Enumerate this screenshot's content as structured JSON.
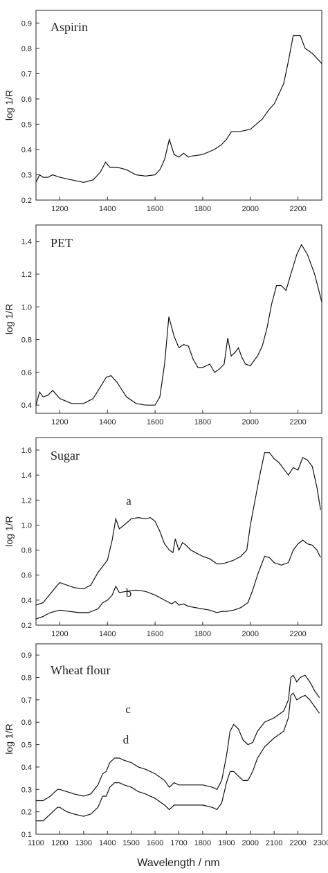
{
  "figure": {
    "xlabel": "Wavelength / nm"
  },
  "chart_data": [
    {
      "type": "line",
      "title": "Aspirin",
      "ylabel": "log 1/R",
      "xlim": [
        1100,
        2300
      ],
      "ylim": [
        0.2,
        0.95
      ],
      "yticks": [
        "0.2",
        "0.3",
        "0.4",
        "0.5",
        "0.6",
        "0.7",
        "0.8",
        "0.9"
      ],
      "xticks": [
        "1200",
        "1400",
        "1600",
        "1800",
        "2000",
        "2200"
      ],
      "series": [
        {
          "x": [
            1100,
            1115,
            1130,
            1150,
            1170,
            1200,
            1250,
            1300,
            1340,
            1370,
            1392,
            1410,
            1440,
            1480,
            1520,
            1560,
            1600,
            1620,
            1640,
            1660,
            1680,
            1700,
            1720,
            1740,
            1760,
            1800,
            1850,
            1880,
            1900,
            1920,
            1950,
            2000,
            2050,
            2080,
            2100,
            2120,
            2140,
            2160,
            2180,
            2195,
            2210,
            2230,
            2260,
            2300
          ],
          "y": [
            0.27,
            0.3,
            0.29,
            0.29,
            0.3,
            0.29,
            0.28,
            0.27,
            0.28,
            0.31,
            0.35,
            0.33,
            0.33,
            0.32,
            0.3,
            0.295,
            0.3,
            0.32,
            0.36,
            0.44,
            0.38,
            0.37,
            0.385,
            0.37,
            0.375,
            0.38,
            0.4,
            0.42,
            0.44,
            0.47,
            0.47,
            0.48,
            0.52,
            0.56,
            0.58,
            0.62,
            0.66,
            0.75,
            0.85,
            0.85,
            0.85,
            0.8,
            0.78,
            0.74
          ]
        }
      ]
    },
    {
      "type": "line",
      "title": "PET",
      "ylabel": "log 1/R",
      "xlim": [
        1100,
        2300
      ],
      "ylim": [
        0.35,
        1.5
      ],
      "yticks": [
        "0.4",
        "0.6",
        "0.8",
        "1.0",
        "1.2",
        "1.4"
      ],
      "xticks": [
        "1200",
        "1400",
        "1600",
        "1800",
        "2000",
        "2200"
      ],
      "series": [
        {
          "x": [
            1100,
            1115,
            1130,
            1150,
            1170,
            1200,
            1250,
            1300,
            1340,
            1370,
            1395,
            1415,
            1440,
            1480,
            1520,
            1560,
            1600,
            1620,
            1640,
            1658,
            1680,
            1700,
            1720,
            1740,
            1760,
            1780,
            1800,
            1830,
            1850,
            1870,
            1890,
            1905,
            1920,
            1935,
            1950,
            1965,
            1980,
            2000,
            2030,
            2050,
            2070,
            2090,
            2110,
            2130,
            2150,
            2170,
            2195,
            2215,
            2240,
            2270,
            2300
          ],
          "y": [
            0.4,
            0.48,
            0.45,
            0.46,
            0.49,
            0.44,
            0.41,
            0.41,
            0.44,
            0.51,
            0.57,
            0.58,
            0.54,
            0.45,
            0.41,
            0.4,
            0.4,
            0.45,
            0.65,
            0.94,
            0.82,
            0.75,
            0.77,
            0.76,
            0.68,
            0.63,
            0.63,
            0.65,
            0.6,
            0.62,
            0.65,
            0.81,
            0.7,
            0.72,
            0.75,
            0.69,
            0.65,
            0.64,
            0.7,
            0.76,
            0.87,
            1.02,
            1.13,
            1.13,
            1.1,
            1.2,
            1.32,
            1.38,
            1.32,
            1.2,
            1.03
          ]
        }
      ]
    },
    {
      "type": "line",
      "title": "Sugar",
      "ylabel": "log 1/R",
      "xlim": [
        1100,
        2300
      ],
      "ylim": [
        0.2,
        1.7
      ],
      "yticks": [
        "0.2",
        "0.4",
        "0.6",
        "0.8",
        "1.0",
        "1.2",
        "1.4",
        "1.6"
      ],
      "xticks": [
        "1200",
        "1400",
        "1600",
        "1800",
        "2000",
        "2200"
      ],
      "annotations": [
        "a",
        "b"
      ],
      "series": [
        {
          "name": "a",
          "x": [
            1100,
            1130,
            1160,
            1190,
            1200,
            1230,
            1260,
            1300,
            1330,
            1360,
            1380,
            1400,
            1420,
            1435,
            1450,
            1470,
            1500,
            1530,
            1560,
            1580,
            1600,
            1620,
            1640,
            1660,
            1675,
            1685,
            1700,
            1715,
            1730,
            1750,
            1770,
            1800,
            1830,
            1860,
            1880,
            1900,
            1930,
            1960,
            1985,
            2000,
            2020,
            2040,
            2060,
            2080,
            2100,
            2120,
            2140,
            2160,
            2180,
            2200,
            2220,
            2240,
            2260,
            2280,
            2295
          ],
          "y": [
            0.36,
            0.38,
            0.45,
            0.52,
            0.54,
            0.52,
            0.5,
            0.49,
            0.52,
            0.62,
            0.67,
            0.72,
            0.88,
            1.05,
            0.97,
            1.0,
            1.05,
            1.06,
            1.05,
            1.06,
            1.03,
            0.95,
            0.85,
            0.8,
            0.78,
            0.89,
            0.8,
            0.86,
            0.84,
            0.8,
            0.78,
            0.75,
            0.73,
            0.69,
            0.69,
            0.7,
            0.72,
            0.75,
            0.8,
            1.0,
            1.2,
            1.4,
            1.58,
            1.58,
            1.53,
            1.5,
            1.45,
            1.4,
            1.46,
            1.44,
            1.54,
            1.52,
            1.47,
            1.3,
            1.12
          ]
        },
        {
          "name": "b",
          "x": [
            1100,
            1130,
            1160,
            1200,
            1240,
            1280,
            1320,
            1360,
            1380,
            1400,
            1420,
            1435,
            1450,
            1480,
            1520,
            1560,
            1600,
            1640,
            1670,
            1685,
            1700,
            1720,
            1740,
            1770,
            1800,
            1830,
            1860,
            1880,
            1900,
            1930,
            1960,
            1990,
            2010,
            2030,
            2060,
            2080,
            2100,
            2130,
            2160,
            2180,
            2200,
            2220,
            2240,
            2260,
            2280,
            2295
          ],
          "y": [
            0.25,
            0.27,
            0.3,
            0.32,
            0.31,
            0.3,
            0.3,
            0.33,
            0.38,
            0.4,
            0.44,
            0.51,
            0.46,
            0.47,
            0.48,
            0.47,
            0.44,
            0.4,
            0.37,
            0.39,
            0.36,
            0.37,
            0.35,
            0.34,
            0.33,
            0.32,
            0.3,
            0.31,
            0.31,
            0.32,
            0.34,
            0.38,
            0.48,
            0.6,
            0.75,
            0.74,
            0.7,
            0.68,
            0.7,
            0.8,
            0.85,
            0.88,
            0.85,
            0.84,
            0.8,
            0.74
          ]
        }
      ]
    },
    {
      "type": "line",
      "title": "Wheat flour",
      "ylabel": "log 1/R",
      "xlim": [
        1100,
        2300
      ],
      "ylim": [
        0.1,
        0.95
      ],
      "yticks": [
        "0.1",
        "0.2",
        "0.3",
        "0.4",
        "0.5",
        "0.6",
        "0.7",
        "0.8",
        "0.9"
      ],
      "xticks": [
        "1100",
        "1200",
        "1300",
        "1400",
        "1500",
        "1600",
        "1700",
        "1800",
        "1900",
        "2000",
        "2100",
        "2200",
        "2300"
      ],
      "annotations": [
        "c",
        "d"
      ],
      "series": [
        {
          "name": "c",
          "x": [
            1100,
            1130,
            1160,
            1190,
            1200,
            1230,
            1260,
            1300,
            1330,
            1360,
            1380,
            1395,
            1410,
            1430,
            1450,
            1470,
            1500,
            1530,
            1560,
            1600,
            1640,
            1660,
            1680,
            1700,
            1750,
            1800,
            1840,
            1860,
            1880,
            1900,
            1915,
            1930,
            1950,
            1970,
            1990,
            2010,
            2030,
            2060,
            2100,
            2140,
            2160,
            2170,
            2180,
            2195,
            2210,
            2230,
            2250,
            2270,
            2290
          ],
          "y": [
            0.25,
            0.25,
            0.27,
            0.3,
            0.3,
            0.29,
            0.28,
            0.27,
            0.28,
            0.32,
            0.37,
            0.38,
            0.42,
            0.44,
            0.44,
            0.43,
            0.42,
            0.4,
            0.39,
            0.37,
            0.34,
            0.31,
            0.33,
            0.32,
            0.32,
            0.32,
            0.31,
            0.3,
            0.34,
            0.45,
            0.56,
            0.59,
            0.57,
            0.52,
            0.5,
            0.51,
            0.56,
            0.6,
            0.62,
            0.65,
            0.7,
            0.8,
            0.81,
            0.78,
            0.8,
            0.81,
            0.78,
            0.74,
            0.71
          ]
        },
        {
          "name": "d",
          "x": [
            1100,
            1130,
            1160,
            1190,
            1200,
            1230,
            1260,
            1300,
            1330,
            1360,
            1380,
            1395,
            1410,
            1430,
            1450,
            1470,
            1500,
            1530,
            1560,
            1600,
            1640,
            1660,
            1680,
            1700,
            1750,
            1800,
            1840,
            1860,
            1880,
            1900,
            1915,
            1930,
            1950,
            1970,
            1990,
            2010,
            2030,
            2060,
            2100,
            2140,
            2160,
            2170,
            2180,
            2195,
            2210,
            2230,
            2250,
            2270,
            2290
          ],
          "y": [
            0.16,
            0.16,
            0.19,
            0.22,
            0.22,
            0.2,
            0.19,
            0.18,
            0.19,
            0.22,
            0.27,
            0.27,
            0.31,
            0.33,
            0.33,
            0.32,
            0.31,
            0.29,
            0.28,
            0.26,
            0.23,
            0.21,
            0.23,
            0.23,
            0.23,
            0.23,
            0.22,
            0.21,
            0.24,
            0.33,
            0.38,
            0.38,
            0.36,
            0.34,
            0.34,
            0.38,
            0.44,
            0.49,
            0.53,
            0.56,
            0.62,
            0.72,
            0.73,
            0.7,
            0.71,
            0.72,
            0.7,
            0.67,
            0.64
          ]
        }
      ]
    }
  ]
}
